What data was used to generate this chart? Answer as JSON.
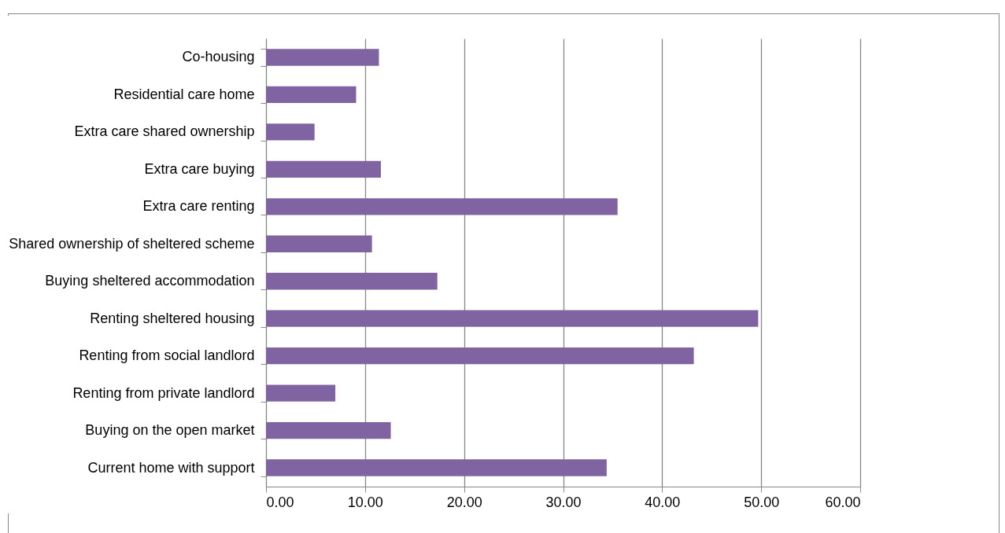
{
  "chart_data": {
    "type": "bar",
    "orientation": "horizontal",
    "categories": [
      "Co-housing",
      "Residential care home",
      "Extra care shared ownership",
      "Extra care buying",
      "Extra care renting",
      "Shared ownership of sheltered scheme",
      "Buying sheltered accommodation",
      "Renting sheltered housing",
      "Renting from social landlord",
      "Renting from private landlord",
      "Buying on the open market",
      "Current home with support"
    ],
    "values": [
      11.4,
      9.1,
      4.9,
      11.6,
      35.5,
      10.7,
      17.3,
      49.7,
      43.2,
      7.0,
      12.6,
      34.4
    ],
    "color": "#8064a2",
    "xlim": [
      0,
      60
    ],
    "xticks": [
      {
        "value": 0,
        "label": "0.00"
      },
      {
        "value": 10,
        "label": "10.00"
      },
      {
        "value": 20,
        "label": "20.00"
      },
      {
        "value": 30,
        "label": "30.00"
      },
      {
        "value": 40,
        "label": "40.00"
      },
      {
        "value": 50,
        "label": "50.00"
      },
      {
        "value": 60,
        "label": "60.00"
      }
    ],
    "grid": "x"
  }
}
